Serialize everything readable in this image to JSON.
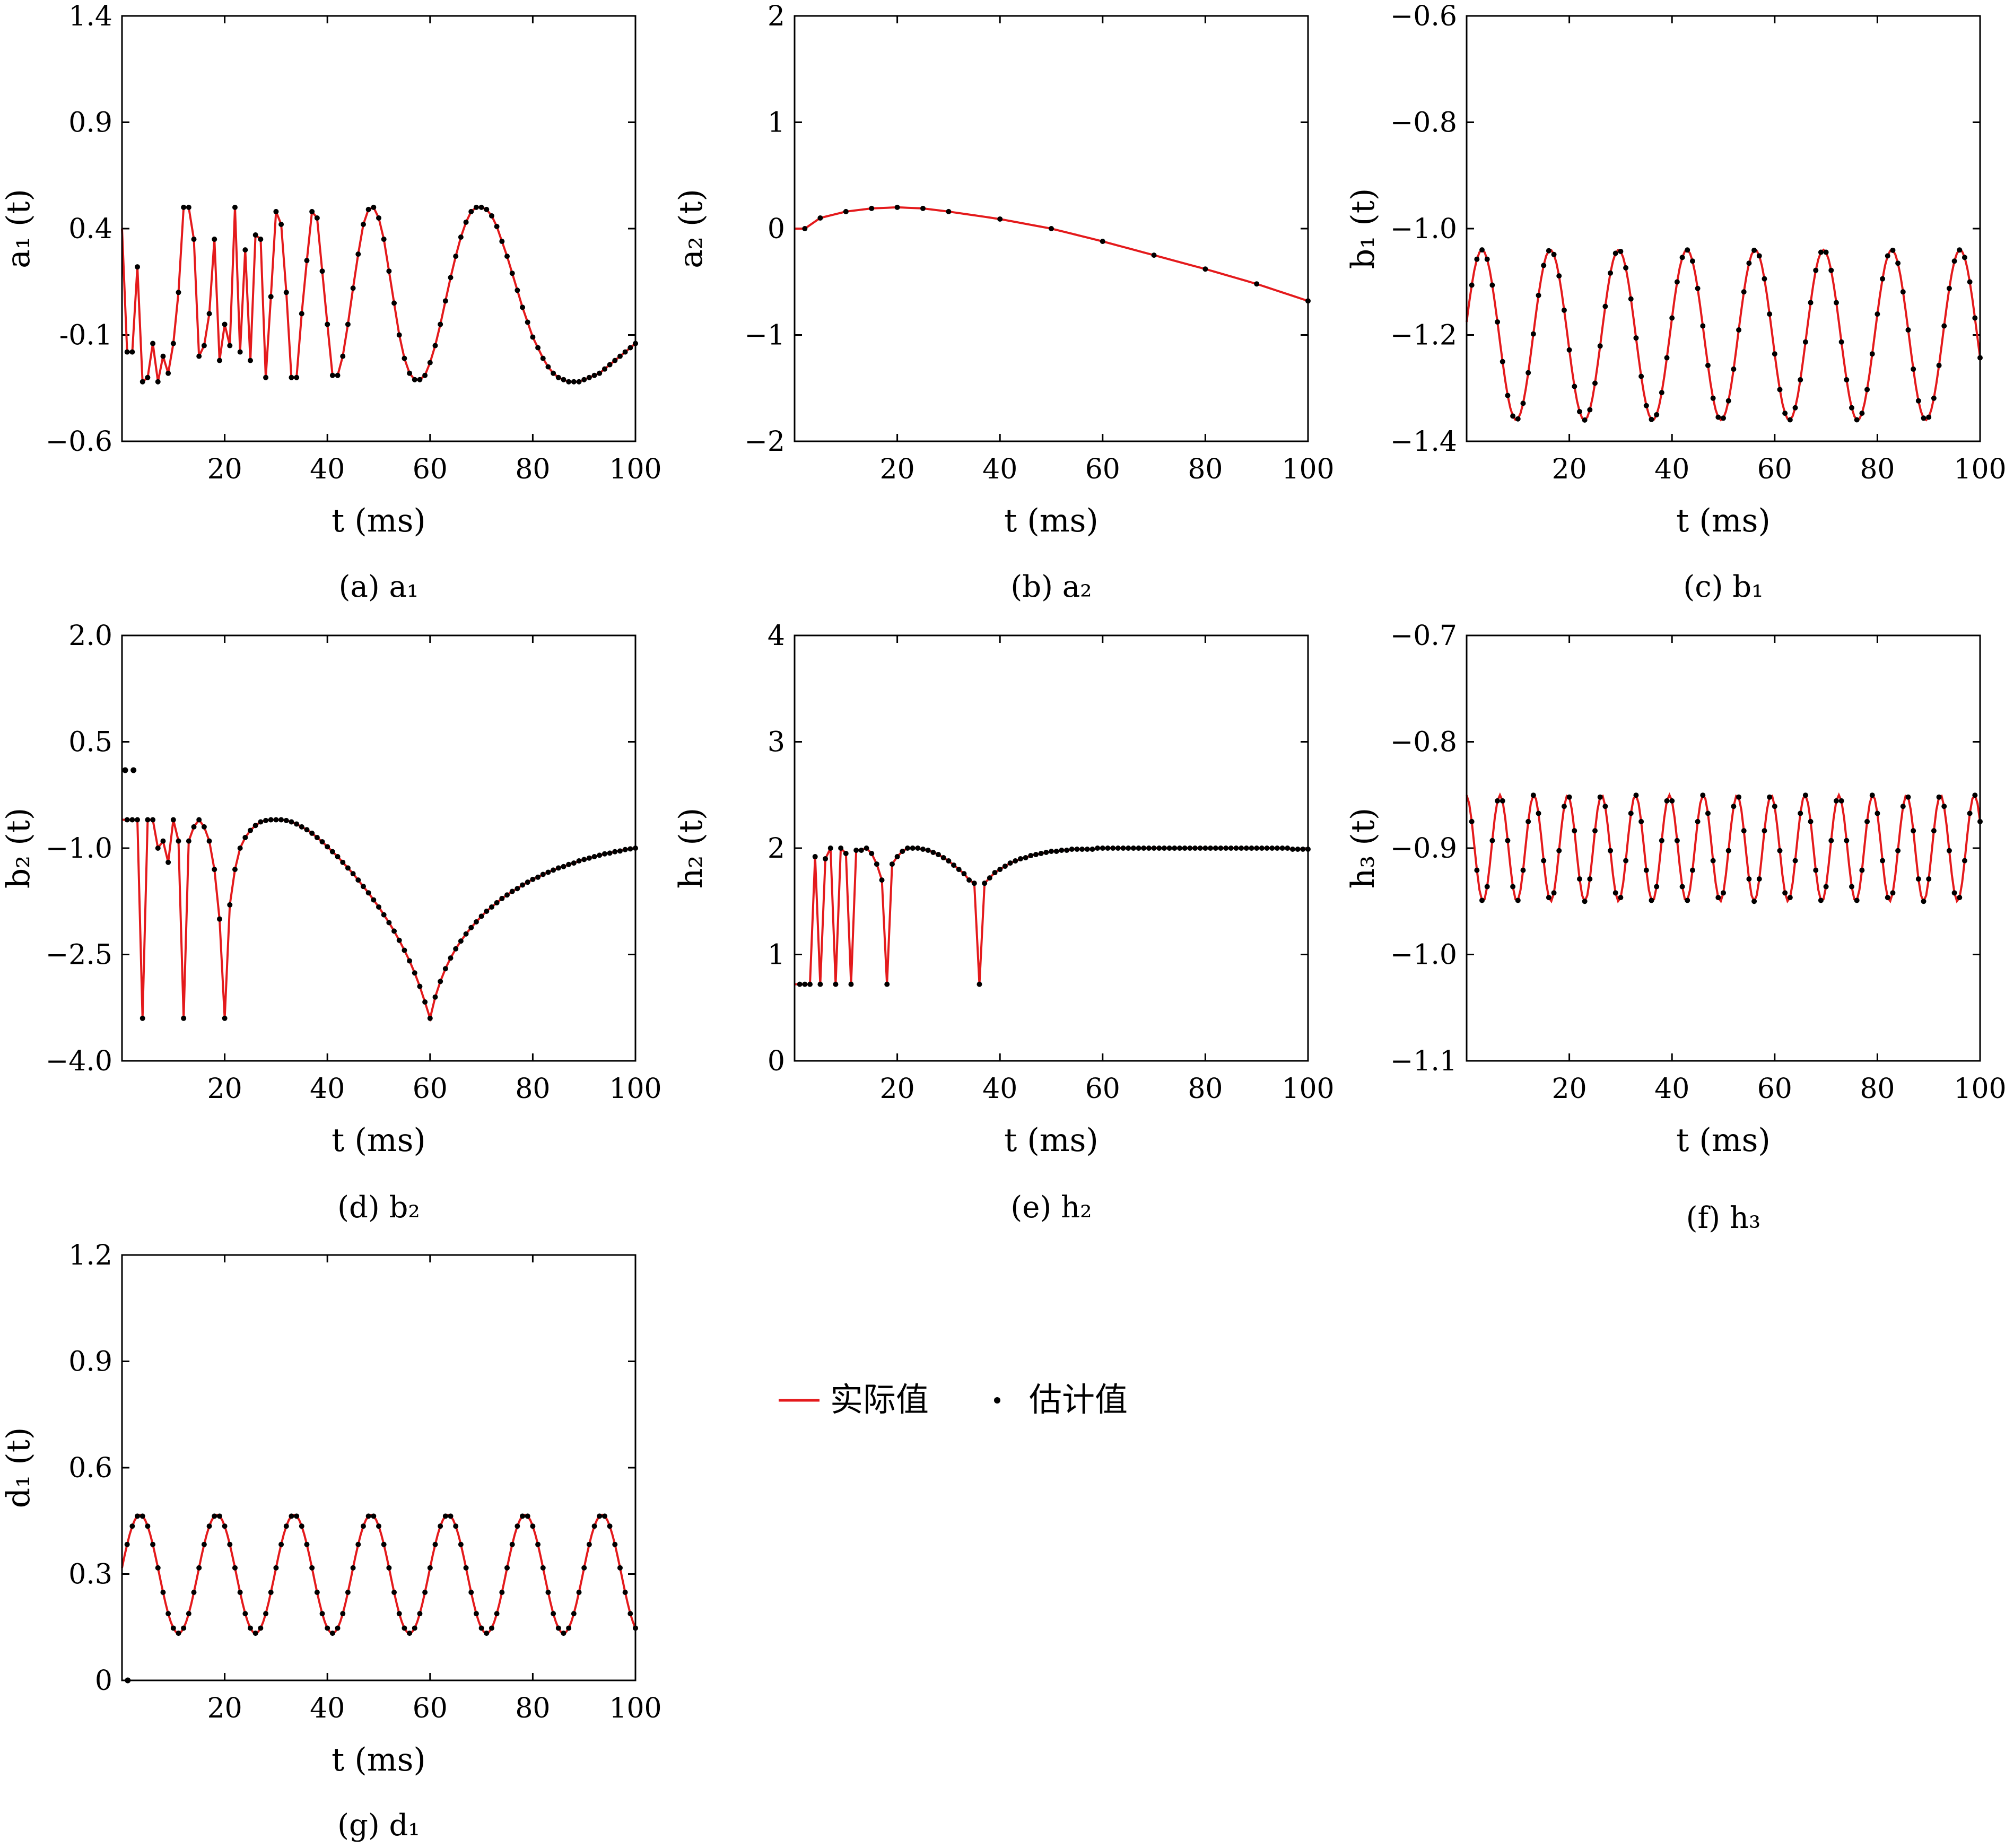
{
  "legend": {
    "actual_label": "实际值",
    "estimated_label": "估计值",
    "actual_color": "#e41a1c",
    "estimated_color": "#000000",
    "placement": "center-right"
  },
  "chart_data": [
    {
      "id": "a",
      "type": "line",
      "caption": "(a)  a₁",
      "xlabel": "t (ms)",
      "ylabel": "a₁ (t)",
      "xlim": [
        0,
        100
      ],
      "ylim": [
        -0.6,
        1.4
      ],
      "xticks": [
        20,
        40,
        60,
        80,
        100
      ],
      "yticks": [
        -0.6,
        -0.1,
        0.4,
        0.9,
        1.4
      ],
      "ytick_labels": [
        "−0.6",
        "-0.1",
        "0.4",
        "0.9",
        "1.4"
      ],
      "series": [
        {
          "role": "actual",
          "x": [
            0,
            1,
            2,
            3,
            4,
            5,
            6,
            7,
            8,
            9,
            10,
            11,
            12,
            13,
            14,
            15,
            16,
            17,
            18,
            19,
            20,
            21,
            22,
            23,
            24,
            25,
            26,
            27,
            28,
            29,
            30,
            31,
            32,
            33,
            34,
            35,
            36,
            37,
            38,
            39,
            40,
            41,
            42,
            43,
            44,
            45,
            46,
            47,
            48,
            49,
            50,
            51,
            52,
            53,
            54,
            55,
            56,
            57,
            58,
            59,
            60,
            61,
            62,
            63,
            64,
            65,
            66,
            67,
            68,
            69,
            70,
            71,
            72,
            73,
            74,
            75,
            76,
            77,
            78,
            79,
            80,
            81,
            82,
            83,
            84,
            85,
            86,
            87,
            88,
            89,
            90,
            91,
            92,
            93,
            94,
            95,
            96,
            97,
            98,
            99,
            100
          ],
          "y": [
            0.4,
            -0.18,
            -0.18,
            0.22,
            -0.32,
            -0.3,
            -0.14,
            -0.32,
            -0.2,
            -0.28,
            -0.14,
            0.1,
            0.5,
            0.5,
            0.35,
            -0.2,
            -0.15,
            0.0,
            0.35,
            -0.22,
            -0.05,
            -0.15,
            0.5,
            -0.18,
            0.3,
            -0.22,
            0.37,
            0.35,
            -0.3,
            0.08,
            0.48,
            0.42,
            0.1,
            -0.3,
            -0.3,
            0.0,
            0.25,
            0.48,
            0.45,
            0.2,
            -0.05,
            -0.29,
            -0.29,
            -0.2,
            -0.05,
            0.12,
            0.28,
            0.42,
            0.49,
            0.5,
            0.45,
            0.35,
            0.2,
            0.05,
            -0.1,
            -0.21,
            -0.28,
            -0.31,
            -0.31,
            -0.29,
            -0.23,
            -0.15,
            -0.05,
            0.06,
            0.17,
            0.27,
            0.36,
            0.43,
            0.48,
            0.5,
            0.5,
            0.49,
            0.46,
            0.41,
            0.34,
            0.27,
            0.19,
            0.11,
            0.03,
            -0.04,
            -0.11,
            -0.16,
            -0.21,
            -0.25,
            -0.28,
            -0.3,
            -0.31,
            -0.32,
            -0.32,
            -0.32,
            -0.31,
            -0.3,
            -0.29,
            -0.28,
            -0.26,
            -0.24,
            -0.22,
            -0.2,
            -0.18,
            -0.16,
            -0.14
          ]
        },
        {
          "role": "estimated",
          "x_start": 1,
          "x_end": 100,
          "step": 1,
          "note": ""
        }
      ]
    },
    {
      "id": "b",
      "type": "line",
      "caption": "(b)  a₂",
      "xlabel": "t (ms)",
      "ylabel": "a₂ (t)",
      "xlim": [
        0,
        100
      ],
      "ylim": [
        -2,
        2
      ],
      "xticks": [
        20,
        40,
        60,
        80,
        100
      ],
      "yticks": [
        -2,
        -1,
        0,
        1,
        2
      ],
      "ytick_labels": [
        "−2",
        "−1",
        "0",
        "1",
        "2"
      ],
      "series": [
        {
          "role": "actual",
          "curve": "poly",
          "x": [
            0,
            2,
            5,
            10,
            15,
            20,
            25,
            30,
            40,
            50,
            60,
            70,
            80,
            90,
            100
          ],
          "y": [
            0.0,
            0.0,
            0.1,
            0.16,
            0.19,
            0.2,
            0.19,
            0.16,
            0.09,
            0.0,
            -0.12,
            -0.25,
            -0.38,
            -0.52,
            -0.68
          ]
        }
      ]
    },
    {
      "id": "c",
      "type": "line",
      "caption": "(c)  b₁",
      "xlabel": "t (ms)",
      "ylabel": "b₁ (t)",
      "xlim": [
        0,
        100
      ],
      "ylim": [
        -1.4,
        -0.6
      ],
      "xticks": [
        20,
        40,
        60,
        80,
        100
      ],
      "yticks": [
        -1.4,
        -1.2,
        -1.0,
        -0.8,
        -0.6
      ],
      "ytick_labels": [
        "−1.4",
        "−1.2",
        "−1.0",
        "−0.8",
        "−0.6"
      ],
      "series": [
        {
          "role": "actual",
          "curve": "sine",
          "center": -1.2,
          "amplitude": 0.16,
          "period": 13.3,
          "peak_at": 3.0
        }
      ]
    },
    {
      "id": "d",
      "type": "line",
      "caption": "(d)  b₂",
      "xlabel": "t (ms)",
      "ylabel": "b₂ (t)",
      "xlim": [
        0,
        100
      ],
      "ylim": [
        -4.0,
        2.0
      ],
      "xticks": [
        20,
        40,
        60,
        80,
        100
      ],
      "yticks": [
        -4.0,
        -2.5,
        -1.0,
        0.5,
        2.0
      ],
      "ytick_labels": [
        "−4.0",
        "−2.5",
        "−1.0",
        "0.5",
        "2.0"
      ],
      "series": [
        {
          "role": "actual",
          "x": [
            0,
            1,
            2,
            3,
            4,
            5,
            6,
            7,
            8,
            9,
            10,
            11,
            12,
            13,
            14,
            15,
            16,
            17,
            18,
            19,
            20,
            21,
            22,
            23,
            24,
            25,
            26,
            27,
            28,
            29,
            30,
            31,
            32,
            33,
            34,
            35,
            36,
            37,
            38,
            39,
            40,
            41,
            42,
            43,
            44,
            45,
            46,
            47,
            48,
            49,
            50,
            51,
            52,
            53,
            54,
            55,
            56,
            57,
            58,
            59,
            60,
            61,
            62,
            63,
            64,
            65,
            66,
            67,
            68,
            69,
            70,
            71,
            72,
            73,
            74,
            75,
            76,
            77,
            78,
            79,
            80,
            81,
            82,
            83,
            84,
            85,
            86,
            87,
            88,
            89,
            90,
            91,
            92,
            93,
            94,
            95,
            96,
            97,
            98,
            99,
            100
          ],
          "y": [
            -0.6,
            -0.6,
            -0.6,
            -0.6,
            -3.4,
            -0.6,
            -0.6,
            -1.0,
            -0.9,
            -1.2,
            -0.6,
            -0.9,
            -3.4,
            -0.9,
            -0.7,
            -0.6,
            -0.7,
            -0.9,
            -1.3,
            -2.0,
            -3.4,
            -1.8,
            -1.3,
            -1.0,
            -0.85,
            -0.75,
            -0.68,
            -0.63,
            -0.61,
            -0.6,
            -0.6,
            -0.6,
            -0.61,
            -0.63,
            -0.66,
            -0.7,
            -0.74,
            -0.79,
            -0.85,
            -0.91,
            -0.98,
            -1.05,
            -1.12,
            -1.2,
            -1.28,
            -1.36,
            -1.45,
            -1.54,
            -1.63,
            -1.73,
            -1.83,
            -1.94,
            -2.05,
            -2.17,
            -2.3,
            -2.44,
            -2.59,
            -2.76,
            -2.95,
            -3.17,
            -3.4,
            -3.1,
            -2.88,
            -2.7,
            -2.55,
            -2.42,
            -2.31,
            -2.21,
            -2.12,
            -2.04,
            -1.96,
            -1.89,
            -1.83,
            -1.77,
            -1.71,
            -1.66,
            -1.61,
            -1.57,
            -1.52,
            -1.48,
            -1.44,
            -1.41,
            -1.37,
            -1.34,
            -1.31,
            -1.28,
            -1.26,
            -1.23,
            -1.21,
            -1.18,
            -1.16,
            -1.14,
            -1.12,
            -1.1,
            -1.08,
            -1.07,
            -1.05,
            -1.04,
            -1.02,
            -1.01,
            -1.0
          ]
        },
        {
          "role": "estimated-outlier",
          "x": [
            0,
            1
          ],
          "y": [
            0.1,
            0.1
          ]
        }
      ]
    },
    {
      "id": "e",
      "type": "line",
      "caption": "(e)  h₂",
      "xlabel": "t (ms)",
      "ylabel": "h₂ (t)",
      "xlim": [
        0,
        100
      ],
      "ylim": [
        0,
        4
      ],
      "xticks": [
        20,
        40,
        60,
        80,
        100
      ],
      "yticks": [
        0,
        1,
        2,
        3,
        4
      ],
      "ytick_labels": [
        "0",
        "1",
        "2",
        "3",
        "4"
      ],
      "series": [
        {
          "role": "actual",
          "x": [
            0,
            1,
            2,
            3,
            4,
            5,
            6,
            7,
            8,
            9,
            10,
            11,
            12,
            13,
            14,
            15,
            16,
            17,
            18,
            19,
            20,
            21,
            22,
            23,
            24,
            25,
            26,
            27,
            28,
            29,
            30,
            31,
            32,
            33,
            34,
            35,
            36,
            37,
            38,
            39,
            40,
            41,
            42,
            43,
            44,
            45,
            46,
            47,
            48,
            49,
            50,
            51,
            52,
            53,
            54,
            55,
            56,
            57,
            58,
            59,
            60,
            61,
            62,
            63,
            64,
            65,
            66,
            67,
            68,
            69,
            70,
            71,
            72,
            73,
            74,
            75,
            76,
            77,
            78,
            79,
            80,
            81,
            82,
            83,
            84,
            85,
            86,
            87,
            88,
            89,
            90,
            91,
            92,
            93,
            94,
            95,
            96,
            97,
            98,
            99,
            100
          ],
          "y": [
            0.72,
            0.72,
            0.72,
            0.72,
            1.92,
            0.72,
            1.9,
            2.0,
            0.72,
            2.0,
            1.95,
            0.72,
            1.98,
            1.98,
            2.0,
            1.95,
            1.85,
            1.7,
            0.72,
            1.85,
            1.92,
            1.97,
            2.0,
            2.0,
            2.0,
            1.99,
            1.98,
            1.96,
            1.94,
            1.91,
            1.88,
            1.84,
            1.8,
            1.76,
            1.7,
            1.67,
            0.72,
            1.67,
            1.72,
            1.77,
            1.8,
            1.83,
            1.86,
            1.88,
            1.9,
            1.91,
            1.93,
            1.94,
            1.95,
            1.96,
            1.97,
            1.97,
            1.98,
            1.98,
            1.99,
            1.99,
            1.99,
            1.99,
            1.99,
            2.0,
            2.0,
            2.0,
            2.0,
            2.0,
            2.0,
            2.0,
            2.0,
            2.0,
            2.0,
            2.0,
            2.0,
            2.0,
            2.0,
            2.0,
            2.0,
            2.0,
            2.0,
            2.0,
            2.0,
            2.0,
            2.0,
            2.0,
            2.0,
            2.0,
            2.0,
            2.0,
            2.0,
            2.0,
            2.0,
            2.0,
            2.0,
            2.0,
            2.0,
            2.0,
            2.0,
            2.0,
            2.0,
            1.99,
            1.99,
            1.99,
            1.99
          ]
        }
      ]
    },
    {
      "id": "f",
      "type": "line",
      "caption": "(f)  h₃",
      "xlabel": "t (ms)",
      "ylabel": "h₃ (t)",
      "xlim": [
        0,
        100
      ],
      "ylim": [
        -1.1,
        -0.7
      ],
      "xticks": [
        20,
        40,
        60,
        80,
        100
      ],
      "yticks": [
        -1.1,
        -1.0,
        -0.9,
        -0.8,
        -0.7
      ],
      "ytick_labels": [
        "−1.1",
        "−1.0",
        "−0.9",
        "−0.8",
        "−0.7"
      ],
      "series": [
        {
          "role": "actual",
          "curve": "sine",
          "center": -0.9,
          "amplitude": 0.05,
          "period": 6.6,
          "peak_at": 6.5
        }
      ]
    },
    {
      "id": "g",
      "type": "line",
      "caption": "(g)  d₁",
      "xlabel": "t (ms)",
      "ylabel": "d₁ (t)",
      "xlim": [
        0,
        100
      ],
      "ylim": [
        0,
        1.2
      ],
      "xticks": [
        20,
        40,
        60,
        80,
        100
      ],
      "yticks": [
        0,
        0.3,
        0.6,
        0.9,
        1.2
      ],
      "ytick_labels": [
        "0",
        "0.3",
        "0.6",
        "0.9",
        "1.2"
      ],
      "series": [
        {
          "role": "actual",
          "curve": "sine",
          "center": 0.3,
          "amplitude": 0.167,
          "period": 15.0,
          "peak_at": 3.5
        },
        {
          "role": "estimated-outlier",
          "x": [
            0.5
          ],
          "y": [
            0.0
          ]
        }
      ]
    }
  ]
}
